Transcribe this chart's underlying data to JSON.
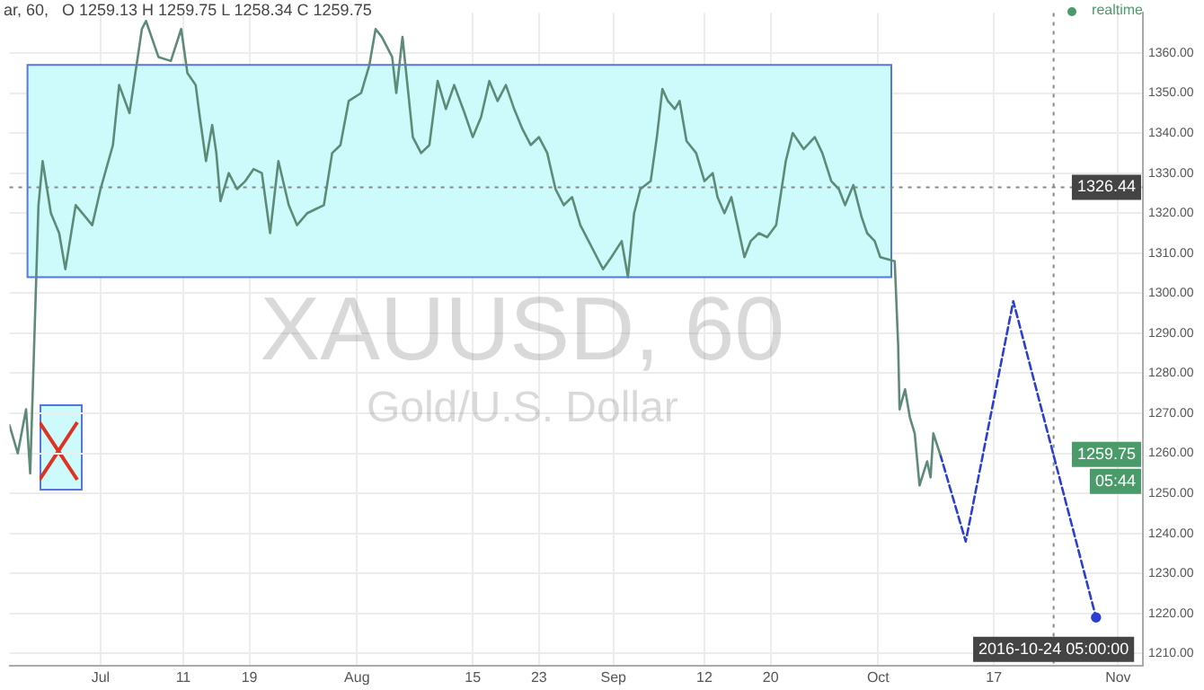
{
  "chart_data": {
    "type": "line",
    "title": "XAUUSD, 60",
    "subtitle": "Gold/U.S. Dollar",
    "xlim": [
      "2016-06-20",
      "2016-11-04"
    ],
    "xticks": [
      {
        "value": "2016-07-01",
        "label": "Jul"
      },
      {
        "value": "2016-07-11",
        "label": "11"
      },
      {
        "value": "2016-07-19",
        "label": "19"
      },
      {
        "value": "2016-08-01",
        "label": "Aug"
      },
      {
        "value": "2016-08-15",
        "label": "15"
      },
      {
        "value": "2016-08-23",
        "label": "23"
      },
      {
        "value": "2016-09-01",
        "label": "Sep"
      },
      {
        "value": "2016-09-12",
        "label": "12"
      },
      {
        "value": "2016-09-20",
        "label": "20"
      },
      {
        "value": "2016-10-03",
        "label": "Oct"
      },
      {
        "value": "2016-10-17",
        "label": "17"
      },
      {
        "value": "2016-11-01",
        "label": "Nov"
      }
    ],
    "ylim": [
      1207,
      1370
    ],
    "yticks": [
      {
        "value": 1210,
        "label": "1210.00"
      },
      {
        "value": 1220,
        "label": "1220.00"
      },
      {
        "value": 1230,
        "label": "1230.00"
      },
      {
        "value": 1240,
        "label": "1240.00"
      },
      {
        "value": 1250,
        "label": "1250.00"
      },
      {
        "value": 1260,
        "label": "1260.00"
      },
      {
        "value": 1270,
        "label": "1270.00"
      },
      {
        "value": 1280,
        "label": "1280.00"
      },
      {
        "value": 1290,
        "label": "1290.00"
      },
      {
        "value": 1300,
        "label": "1300.00"
      },
      {
        "value": 1310,
        "label": "1310.00"
      },
      {
        "value": 1320,
        "label": "1320.00"
      },
      {
        "value": 1330,
        "label": "1330.00"
      },
      {
        "value": 1340,
        "label": "1340.00"
      },
      {
        "value": 1350,
        "label": "1350.00"
      },
      {
        "value": 1360,
        "label": "1360.00"
      }
    ],
    "grid": true,
    "legend": false,
    "marker": "none",
    "series": [
      {
        "color": "#5e8a78",
        "line_style": "solid",
        "x": [
          "2016-06-20",
          "2016-06-21",
          "2016-06-22",
          "2016-06-22T12:00",
          "2016-06-23T12:00",
          "2016-06-24",
          "2016-06-25",
          "2016-06-26",
          "2016-06-26T18:00",
          "2016-06-28",
          "2016-06-30",
          "2016-07-01",
          "2016-07-02T12:00",
          "2016-07-03T06:00",
          "2016-07-04T12:00",
          "2016-07-06",
          "2016-07-06T12:00",
          "2016-07-08",
          "2016-07-09T12:00",
          "2016-07-10T18:00",
          "2016-07-11T12:00",
          "2016-07-12T12:00",
          "2016-07-13",
          "2016-07-13T18:00",
          "2016-07-14T12:00",
          "2016-07-15",
          "2016-07-15T12:00",
          "2016-07-16T12:00",
          "2016-07-17T12:00",
          "2016-07-18T12:00",
          "2016-07-19T12:00",
          "2016-07-20T12:00",
          "2016-07-21T12:00",
          "2016-07-22T12:00",
          "2016-07-23T18:00",
          "2016-07-24T18:00",
          "2016-07-26",
          "2016-07-27",
          "2016-07-28",
          "2016-07-29",
          "2016-07-30",
          "2016-07-31",
          "2016-08-01T12:00",
          "2016-08-02T12:00",
          "2016-08-03T06:00",
          "2016-08-04",
          "2016-08-05T06:00",
          "2016-08-05T18:00",
          "2016-08-06T12:00",
          "2016-08-07T06:00",
          "2016-08-07T18:00",
          "2016-08-08T18:00",
          "2016-08-09T18:00",
          "2016-08-10T18:00",
          "2016-08-11T18:00",
          "2016-08-12T18:00",
          "2016-08-14",
          "2016-08-15",
          "2016-08-16",
          "2016-08-17",
          "2016-08-18",
          "2016-08-19",
          "2016-08-20",
          "2016-08-21",
          "2016-08-22",
          "2016-08-23",
          "2016-08-24",
          "2016-08-25",
          "2016-08-26",
          "2016-08-27",
          "2016-08-28",
          "2016-08-29",
          "2016-08-30",
          "2016-08-30T18:00",
          "2016-08-31T18:00",
          "2016-09-02",
          "2016-09-02T18:00",
          "2016-09-03T12:00",
          "2016-09-04T06:00",
          "2016-09-05T12:00",
          "2016-09-06T06:00",
          "2016-09-06T22:00",
          "2016-09-07T14:00",
          "2016-09-08T10:00",
          "2016-09-09",
          "2016-09-09T20:00",
          "2016-09-11",
          "2016-09-12",
          "2016-09-13",
          "2016-09-13T14:00",
          "2016-09-14T10:00",
          "2016-09-15T06:00",
          "2016-09-16",
          "2016-09-16T20:00",
          "2016-09-17T14:00",
          "2016-09-18T14:00",
          "2016-09-19T14:00",
          "2016-09-20T16:00",
          "2016-09-21T20:00",
          "2016-09-22T16:00",
          "2016-09-24",
          "2016-09-25T08:00",
          "2016-09-26T06:00",
          "2016-09-27T08:00",
          "2016-09-28T06:00",
          "2016-09-29",
          "2016-09-30",
          "2016-10-01",
          "2016-10-01T16:00",
          "2016-10-02T14:00",
          "2016-10-03T06:00",
          "2016-10-05",
          "2016-10-05T10:00",
          "2016-10-05T14:00",
          "2016-10-06T06:00",
          "2016-10-06T20:00",
          "2016-10-07T10:00",
          "2016-10-08",
          "2016-10-08T22:00",
          "2016-10-09T08:00",
          "2016-10-09T16:00",
          "2016-10-10T12:00"
        ],
        "values": [
          1267,
          1260,
          1271,
          1255,
          1322,
          1333,
          1320,
          1315,
          1306,
          1322,
          1317,
          1326,
          1337,
          1352,
          1345,
          1366,
          1368,
          1359,
          1358,
          1366,
          1355,
          1352,
          1344,
          1333,
          1342,
          1335,
          1323,
          1330,
          1326,
          1328,
          1331,
          1330,
          1315,
          1333,
          1322,
          1317,
          1320,
          1321,
          1322,
          1335,
          1337,
          1348,
          1350,
          1357,
          1366,
          1364,
          1359,
          1350,
          1364,
          1349,
          1339,
          1335,
          1337,
          1353,
          1346,
          1352,
          1345,
          1339,
          1344,
          1353,
          1348,
          1352,
          1346,
          1341,
          1337,
          1339,
          1335,
          1326,
          1322,
          1324,
          1317,
          1313,
          1309,
          1306,
          1309,
          1313,
          1304,
          1320,
          1326,
          1328,
          1339,
          1351,
          1348,
          1346,
          1348,
          1338,
          1335,
          1328,
          1330,
          1324,
          1320,
          1324,
          1317,
          1309,
          1313,
          1315,
          1314,
          1317,
          1333,
          1340,
          1336,
          1339,
          1335,
          1328,
          1326,
          1322,
          1327,
          1319,
          1315,
          1313,
          1309,
          1308,
          1287,
          1271,
          1276,
          1269,
          1265,
          1252,
          1258,
          1254,
          1265,
          1259.75
        ]
      },
      {
        "color": "#2a3fd0",
        "line_style": "dashed",
        "x": [
          "2016-10-10T12:00",
          "2016-10-13T14:00",
          "2016-10-19T08:00",
          "2016-10-29T08:00"
        ],
        "values": [
          1259.75,
          1238,
          1298,
          1219
        ]
      }
    ],
    "bands": [
      {
        "axis": "y",
        "from": 1304,
        "to": 1357,
        "color": "#cdfafa"
      }
    ],
    "ref_lines": [
      {
        "axis": "y",
        "value": 1326.44,
        "label": "1326.44",
        "color": "#888888",
        "line_style": "dotted"
      },
      {
        "axis": "x",
        "value": "2016-10-24T05:00",
        "label": "2016-10-24 05:00:00",
        "color": "#888888",
        "line_style": "dotted"
      }
    ],
    "annotations": [
      "ar, 60,   O 1259.13 H 1259.75 L 1258.34 C 1259.75",
      "realtime",
      {
        "text": "1259.75",
        "y": 1259.75
      },
      "05:44"
    ]
  }
}
